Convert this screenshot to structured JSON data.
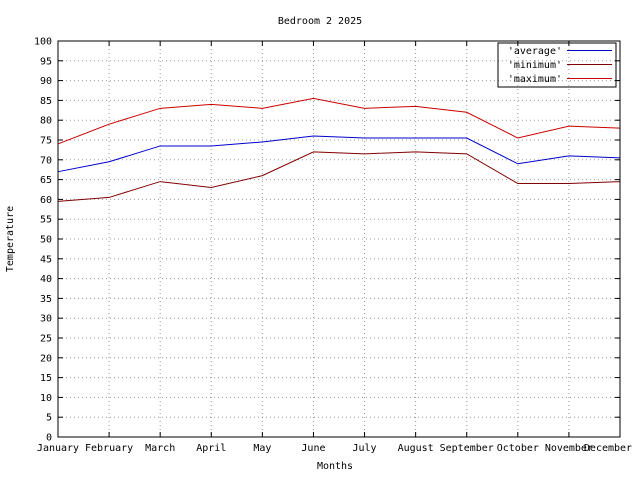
{
  "chart_data": {
    "type": "line",
    "title": "Bedroom 2 2025",
    "xlabel": "Months",
    "ylabel": "Temperature",
    "ylim": [
      0,
      100
    ],
    "ytick_step": 5,
    "grid": true,
    "legend_position": "top-right",
    "categories": [
      "January",
      "February",
      "March",
      "April",
      "May",
      "June",
      "July",
      "August",
      "September",
      "October",
      "November",
      "December"
    ],
    "series": [
      {
        "name": "average",
        "label": "'average'",
        "color": "#0000cc",
        "values": [
          67,
          69.5,
          73.5,
          73.5,
          74.5,
          76,
          75.5,
          75.5,
          75.5,
          69,
          71,
          70.5
        ]
      },
      {
        "name": "minimum",
        "label": "'minimum'",
        "color": "#800000",
        "values": [
          59.5,
          60.5,
          64.5,
          63,
          66,
          72,
          71.5,
          72,
          71.5,
          64,
          64,
          64.5
        ]
      },
      {
        "name": "maximum",
        "label": "'maximum'",
        "color": "#cc0000",
        "values": [
          74,
          79,
          83,
          84,
          83,
          85.5,
          83,
          83.5,
          82,
          75.5,
          78.5,
          78
        ]
      }
    ]
  }
}
